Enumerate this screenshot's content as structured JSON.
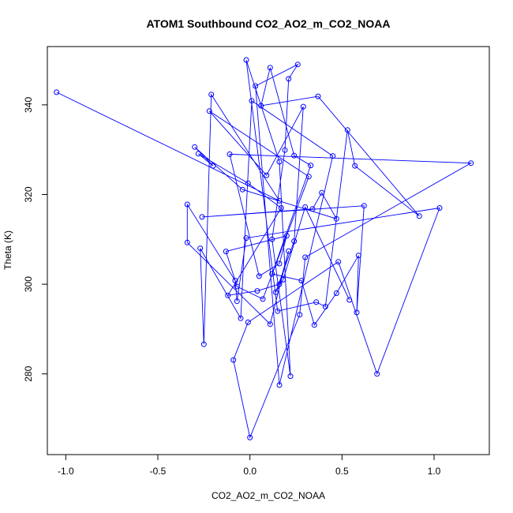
{
  "chart_data": {
    "type": "line",
    "title": "ATOM1 Southbound CO2_AO2_m_CO2_NOAA",
    "xlabel": "CO2_AO2_m_CO2_NOAA",
    "ylabel": "Theta (K)",
    "xlim": [
      -1.1,
      1.3
    ],
    "ylim": [
      262,
      353
    ],
    "x_ticks": [
      -1.0,
      -0.5,
      0.0,
      0.5,
      1.0
    ],
    "x_tick_labels": [
      "-1.0",
      "-0.5",
      "0.0",
      "0.5",
      "1.0"
    ],
    "y_ticks": [
      280,
      300,
      320,
      340
    ],
    "y_tick_labels": [
      "280",
      "300",
      "320",
      "340"
    ],
    "grid": false,
    "legend": "none",
    "series": [
      {
        "color": "#0000ff",
        "marker": "open-circle",
        "points": [
          [
            -1.05,
            342.8
          ],
          [
            0.16,
            318.6
          ],
          [
            -0.21,
            342.3
          ],
          [
            -0.25,
            286.6
          ],
          [
            -0.27,
            308.0
          ],
          [
            -0.05,
            292.4
          ],
          [
            0.01,
            340.9
          ],
          [
            0.45,
            328.6
          ],
          [
            0.16,
            277.5
          ],
          [
            0.03,
            344.2
          ],
          [
            0.26,
            349.0
          ],
          [
            0.21,
            345.8
          ],
          [
            0.19,
            329.9
          ],
          [
            0.12,
            310.0
          ],
          [
            0.22,
            279.5
          ],
          [
            0.16,
            327.3
          ],
          [
            -0.02,
            350.0
          ],
          [
            0.15,
            294.0
          ],
          [
            0.36,
            296.0
          ],
          [
            0.41,
            295.0
          ],
          [
            0.53,
            334.4
          ],
          [
            0.57,
            326.4
          ],
          [
            0.92,
            315.2
          ],
          [
            0.37,
            341.9
          ],
          [
            0.06,
            339.8
          ],
          [
            0.11,
            348.3
          ],
          [
            0.24,
            328.7
          ],
          [
            0.33,
            326.5
          ],
          [
            0.12,
            302.3
          ],
          [
            0.28,
            300.8
          ],
          [
            0.35,
            290.9
          ],
          [
            0.47,
            298.0
          ],
          [
            0.59,
            306.4
          ],
          [
            0.58,
            293.7
          ],
          [
            0.62,
            317.5
          ],
          [
            -0.26,
            315.0
          ],
          [
            0.34,
            316.8
          ],
          [
            0.39,
            320.4
          ],
          [
            0.47,
            314.6
          ],
          [
            -0.04,
            321.1
          ],
          [
            -0.3,
            330.6
          ],
          [
            -0.2,
            326.4
          ],
          [
            -0.28,
            329.1
          ],
          [
            -0.01,
            322.5
          ],
          [
            0.17,
            317.0
          ],
          [
            -0.12,
            297.5
          ],
          [
            0.04,
            298.5
          ],
          [
            0.16,
            300.0
          ],
          [
            0.21,
            307.4
          ],
          [
            0.11,
            291.1
          ],
          [
            -0.34,
            309.3
          ],
          [
            -0.34,
            317.8
          ],
          [
            -0.08,
            300.8
          ],
          [
            -0.07,
            296.2
          ],
          [
            -0.02,
            310.3
          ],
          [
            1.03,
            317.0
          ],
          [
            0.69,
            280.0
          ],
          [
            0.48,
            305.0
          ],
          [
            -0.01,
            291.5
          ],
          [
            -0.09,
            283.1
          ],
          [
            0.0,
            265.8
          ],
          [
            0.27,
            293.2
          ],
          [
            0.3,
            306.0
          ],
          [
            1.2,
            327.0
          ],
          [
            -0.11,
            329.0
          ],
          [
            0.05,
            301.8
          ],
          [
            0.16,
            304.6
          ],
          [
            0.2,
            310.8
          ],
          [
            -0.13,
            307.3
          ],
          [
            -0.07,
            299.5
          ],
          [
            0.07,
            296.7
          ],
          [
            0.32,
            324.0
          ],
          [
            -0.22,
            338.6
          ],
          [
            0.09,
            324.3
          ],
          [
            0.29,
            339.6
          ],
          [
            0.24,
            309.6
          ],
          [
            0.14,
            298.2
          ],
          [
            0.18,
            301.0
          ],
          [
            0.3,
            317.2
          ],
          [
            0.54,
            296.5
          ]
        ]
      }
    ]
  }
}
